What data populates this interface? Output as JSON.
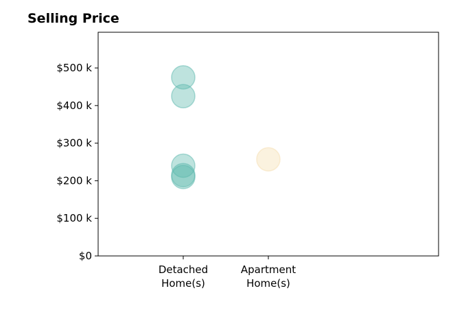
{
  "chart_data": {
    "type": "scatter",
    "title": "Selling Price",
    "xlabel": "",
    "ylabel": "",
    "categories": [
      "Detached\nHome(s)",
      "Apartment\nHome(s)"
    ],
    "ylim": [
      0,
      595000
    ],
    "yticks": [
      {
        "value": 0,
        "label": "$0"
      },
      {
        "value": 100000,
        "label": "$100 k"
      },
      {
        "value": 200000,
        "label": "$200 k"
      },
      {
        "value": 300000,
        "label": "$300 k"
      },
      {
        "value": 400000,
        "label": "$400 k"
      },
      {
        "value": 500000,
        "label": "$500 k"
      }
    ],
    "grid": false,
    "series": [
      {
        "category": 0,
        "color": "#5cb8ad",
        "values": [
          475000,
          425000,
          240000,
          215000,
          210000
        ]
      },
      {
        "category": 1,
        "color": "#f5deb0",
        "values": [
          257000
        ]
      }
    ]
  }
}
